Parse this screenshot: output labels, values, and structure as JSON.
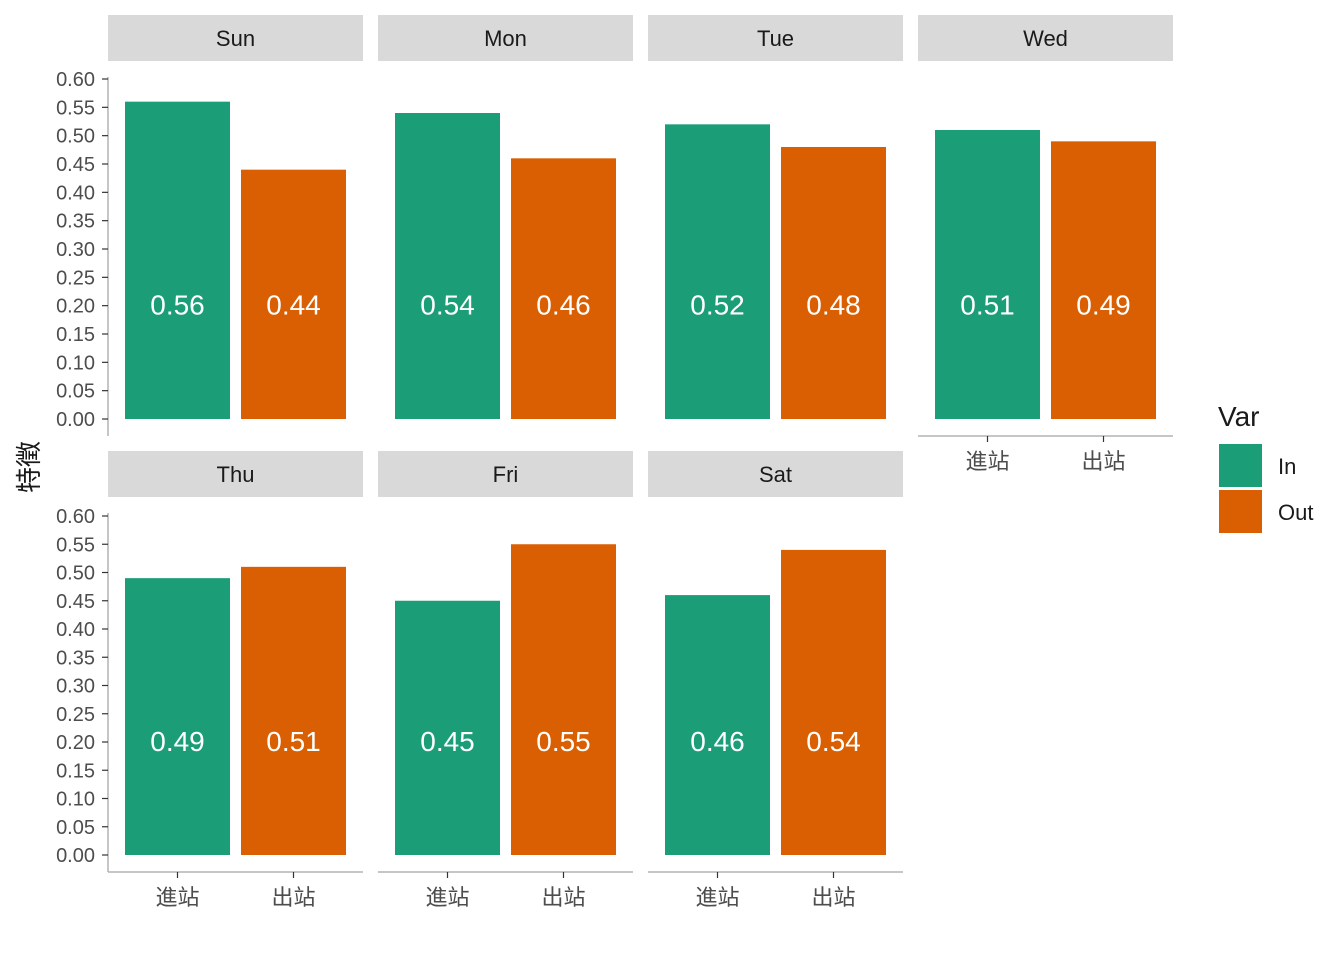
{
  "chart_data": {
    "type": "bar",
    "facet_by": "day",
    "ylabel": "特徵",
    "xlabel": "",
    "ylim": [
      0,
      0.6
    ],
    "yticks": [
      "0.00",
      "0.05",
      "0.10",
      "0.15",
      "0.20",
      "0.25",
      "0.30",
      "0.35",
      "0.40",
      "0.45",
      "0.50",
      "0.55",
      "0.60"
    ],
    "categories": [
      "進站",
      "出站"
    ],
    "legend": {
      "title": "Var",
      "position": "right",
      "entries": [
        {
          "name": "In",
          "color": "#1B9E77"
        },
        {
          "name": "Out",
          "color": "#D95F02"
        }
      ]
    },
    "panels": [
      {
        "facet": "Sun",
        "values": [
          0.56,
          0.44
        ],
        "labels": [
          "0.56",
          "0.44"
        ]
      },
      {
        "facet": "Mon",
        "values": [
          0.54,
          0.46
        ],
        "labels": [
          "0.54",
          "0.46"
        ]
      },
      {
        "facet": "Tue",
        "values": [
          0.52,
          0.48
        ],
        "labels": [
          "0.52",
          "0.48"
        ]
      },
      {
        "facet": "Wed",
        "values": [
          0.51,
          0.49
        ],
        "labels": [
          "0.51",
          "0.49"
        ]
      },
      {
        "facet": "Thu",
        "values": [
          0.49,
          0.51
        ],
        "labels": [
          "0.49",
          "0.51"
        ]
      },
      {
        "facet": "Fri",
        "values": [
          0.45,
          0.55
        ],
        "labels": [
          "0.45",
          "0.55"
        ]
      },
      {
        "facet": "Sat",
        "values": [
          0.46,
          0.54
        ],
        "labels": [
          "0.46",
          "0.54"
        ]
      }
    ],
    "grid": false
  }
}
